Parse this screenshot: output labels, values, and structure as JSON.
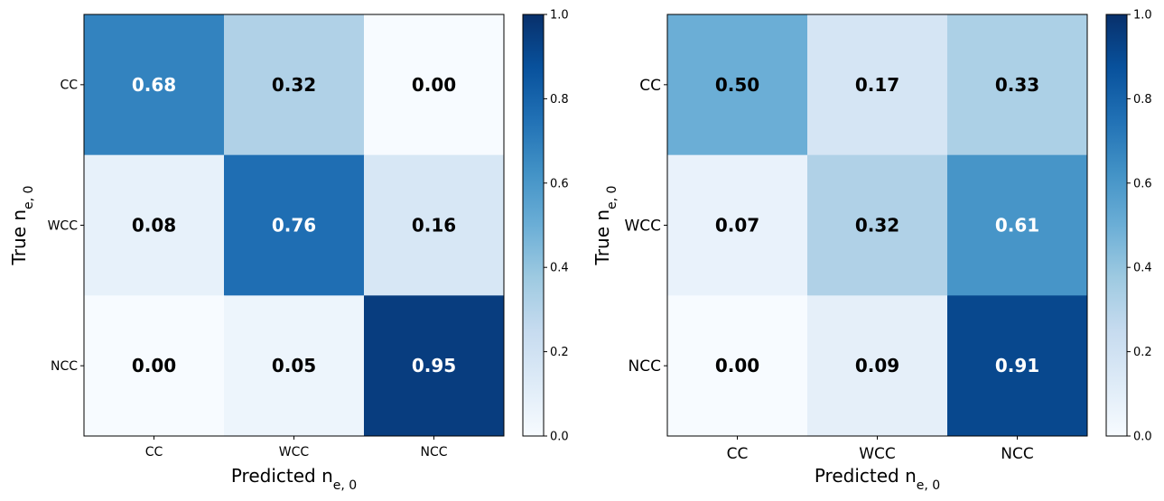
{
  "chart_data": [
    {
      "type": "heatmap",
      "title": "",
      "xlabel": "Predicted n",
      "xlabel_sub": "e, 0",
      "ylabel": "True n",
      "ylabel_sub": "e, 0",
      "categories_x": [
        "CC",
        "WCC",
        "NCC"
      ],
      "categories_y": [
        "CC",
        "WCC",
        "NCC"
      ],
      "values": [
        [
          0.68,
          0.32,
          0.0
        ],
        [
          0.08,
          0.76,
          0.16
        ],
        [
          0.0,
          0.05,
          0.95
        ]
      ],
      "cell_labels": [
        [
          "0.68",
          "0.32",
          "0.00"
        ],
        [
          "0.08",
          "0.76",
          "0.16"
        ],
        [
          "0.00",
          "0.05",
          "0.95"
        ]
      ],
      "colormap": "Blues",
      "clim": [
        0,
        1
      ],
      "colorbar_ticks": [
        "0.0",
        "0.2",
        "0.4",
        "0.6",
        "0.8",
        "1.0"
      ]
    },
    {
      "type": "heatmap",
      "title": "",
      "xlabel": "Predicted n",
      "xlabel_sub": "e, 0",
      "ylabel": "True n",
      "ylabel_sub": "e, 0",
      "categories_x": [
        "CC",
        "WCC",
        "NCC"
      ],
      "categories_y": [
        "CC",
        "WCC",
        "NCC"
      ],
      "values": [
        [
          0.5,
          0.17,
          0.33
        ],
        [
          0.07,
          0.32,
          0.61
        ],
        [
          0.0,
          0.09,
          0.91
        ]
      ],
      "cell_labels": [
        [
          "0.50",
          "0.17",
          "0.33"
        ],
        [
          "0.07",
          "0.32",
          "0.61"
        ],
        [
          "0.00",
          "0.09",
          "0.91"
        ]
      ],
      "colormap": "Blues",
      "clim": [
        0,
        1
      ],
      "colorbar_ticks": [
        "0.0",
        "0.2",
        "0.4",
        "0.6",
        "0.8",
        "1.0"
      ]
    }
  ]
}
